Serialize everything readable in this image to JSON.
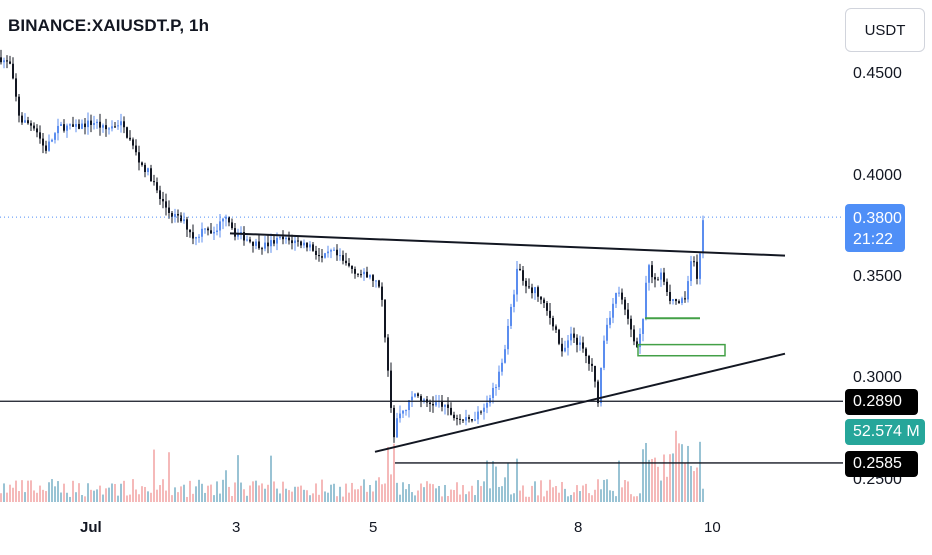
{
  "header": {
    "symbol": "BINANCE:XAIUSDT.P, 1h"
  },
  "currency": {
    "label": "USDT"
  },
  "price_axis": {
    "ticks": [
      "0.4500",
      "0.4000",
      "0.3500",
      "0.3000",
      "0.2500"
    ]
  },
  "time_axis": {
    "ticks": [
      "Jul",
      "3",
      "5",
      "8",
      "10"
    ]
  },
  "tags": {
    "last_price": "0.3800",
    "countdown": "21:22",
    "level_upper": "0.2890",
    "volume": "52.574 M",
    "level_lower": "0.2585"
  },
  "colors": {
    "up": "#5b8def",
    "down": "#131722",
    "vol_up": "#80b4c9",
    "vol_down": "#f2a7a7",
    "last_price_bg": "#4f8ff7",
    "volume_tag_bg": "#26a69a",
    "level_tag_bg": "#000000",
    "support_box": "#43a047"
  },
  "chart_data": {
    "type": "candlestick",
    "interval": "1h",
    "y_range": [
      0.245,
      0.47
    ],
    "x_ticks": [
      "Jul",
      "3",
      "5",
      "8",
      "10"
    ],
    "close_path": [
      [
        0,
        0.459
      ],
      [
        10,
        0.455
      ],
      [
        20,
        0.428
      ],
      [
        35,
        0.425
      ],
      [
        45,
        0.413
      ],
      [
        60,
        0.425
      ],
      [
        75,
        0.424
      ],
      [
        85,
        0.426
      ],
      [
        95,
        0.427
      ],
      [
        105,
        0.423
      ],
      [
        120,
        0.427
      ],
      [
        130,
        0.418
      ],
      [
        140,
        0.407
      ],
      [
        150,
        0.401
      ],
      [
        160,
        0.389
      ],
      [
        170,
        0.382
      ],
      [
        185,
        0.377
      ],
      [
        195,
        0.369
      ],
      [
        205,
        0.376
      ],
      [
        215,
        0.371
      ],
      [
        225,
        0.383
      ],
      [
        235,
        0.372
      ],
      [
        245,
        0.37
      ],
      [
        255,
        0.367
      ],
      [
        265,
        0.366
      ],
      [
        280,
        0.369
      ],
      [
        295,
        0.368
      ],
      [
        310,
        0.366
      ],
      [
        322,
        0.359
      ],
      [
        332,
        0.363
      ],
      [
        345,
        0.357
      ],
      [
        360,
        0.352
      ],
      [
        375,
        0.349
      ],
      [
        382,
        0.34
      ],
      [
        388,
        0.305
      ],
      [
        393,
        0.27
      ],
      [
        398,
        0.283
      ],
      [
        405,
        0.285
      ],
      [
        415,
        0.293
      ],
      [
        425,
        0.288
      ],
      [
        440,
        0.288
      ],
      [
        455,
        0.281
      ],
      [
        468,
        0.279
      ],
      [
        480,
        0.284
      ],
      [
        495,
        0.296
      ],
      [
        505,
        0.316
      ],
      [
        512,
        0.337
      ],
      [
        518,
        0.357
      ],
      [
        525,
        0.345
      ],
      [
        535,
        0.344
      ],
      [
        545,
        0.335
      ],
      [
        555,
        0.326
      ],
      [
        562,
        0.312
      ],
      [
        572,
        0.322
      ],
      [
        582,
        0.315
      ],
      [
        592,
        0.305
      ],
      [
        598,
        0.29
      ],
      [
        605,
        0.325
      ],
      [
        612,
        0.335
      ],
      [
        618,
        0.345
      ],
      [
        625,
        0.333
      ],
      [
        630,
        0.326
      ],
      [
        636,
        0.316
      ],
      [
        642,
        0.325
      ],
      [
        648,
        0.356
      ],
      [
        655,
        0.348
      ],
      [
        662,
        0.352
      ],
      [
        670,
        0.34
      ],
      [
        678,
        0.338
      ],
      [
        685,
        0.338
      ],
      [
        692,
        0.36
      ],
      [
        698,
        0.348
      ],
      [
        703,
        0.38
      ]
    ],
    "hourly_volumes_relative": "0.05-0.25 typical, spikes to ~0.9 near 5 Jul and 8 Jul",
    "annotations": [
      {
        "kind": "descending_trendline",
        "points": [
          [
            230,
            0.372
          ],
          [
            785,
            0.361
          ]
        ]
      },
      {
        "kind": "ascending_trendline",
        "points": [
          [
            375,
            0.264
          ],
          [
            785,
            0.3125
          ]
        ]
      },
      {
        "kind": "horizontal_level",
        "value": 0.289,
        "points": [
          [
            0,
            0.289
          ],
          [
            843,
            0.289
          ]
        ]
      },
      {
        "kind": "horizontal_level",
        "value": 0.2585,
        "points": [
          [
            395,
            0.2585
          ],
          [
            843,
            0.2585
          ]
        ]
      },
      {
        "kind": "last_price_line",
        "value": 0.38,
        "points": [
          [
            0,
            0.38
          ],
          [
            843,
            0.38
          ]
        ]
      },
      {
        "kind": "support_line",
        "points": [
          [
            645,
            0.33
          ],
          [
            700,
            0.33
          ]
        ],
        "color": "#43a047"
      },
      {
        "kind": "support_box",
        "range": [
          [
            638,
            0.3115
          ],
          [
            725,
            0.317
          ]
        ],
        "color": "#43a047"
      }
    ]
  }
}
